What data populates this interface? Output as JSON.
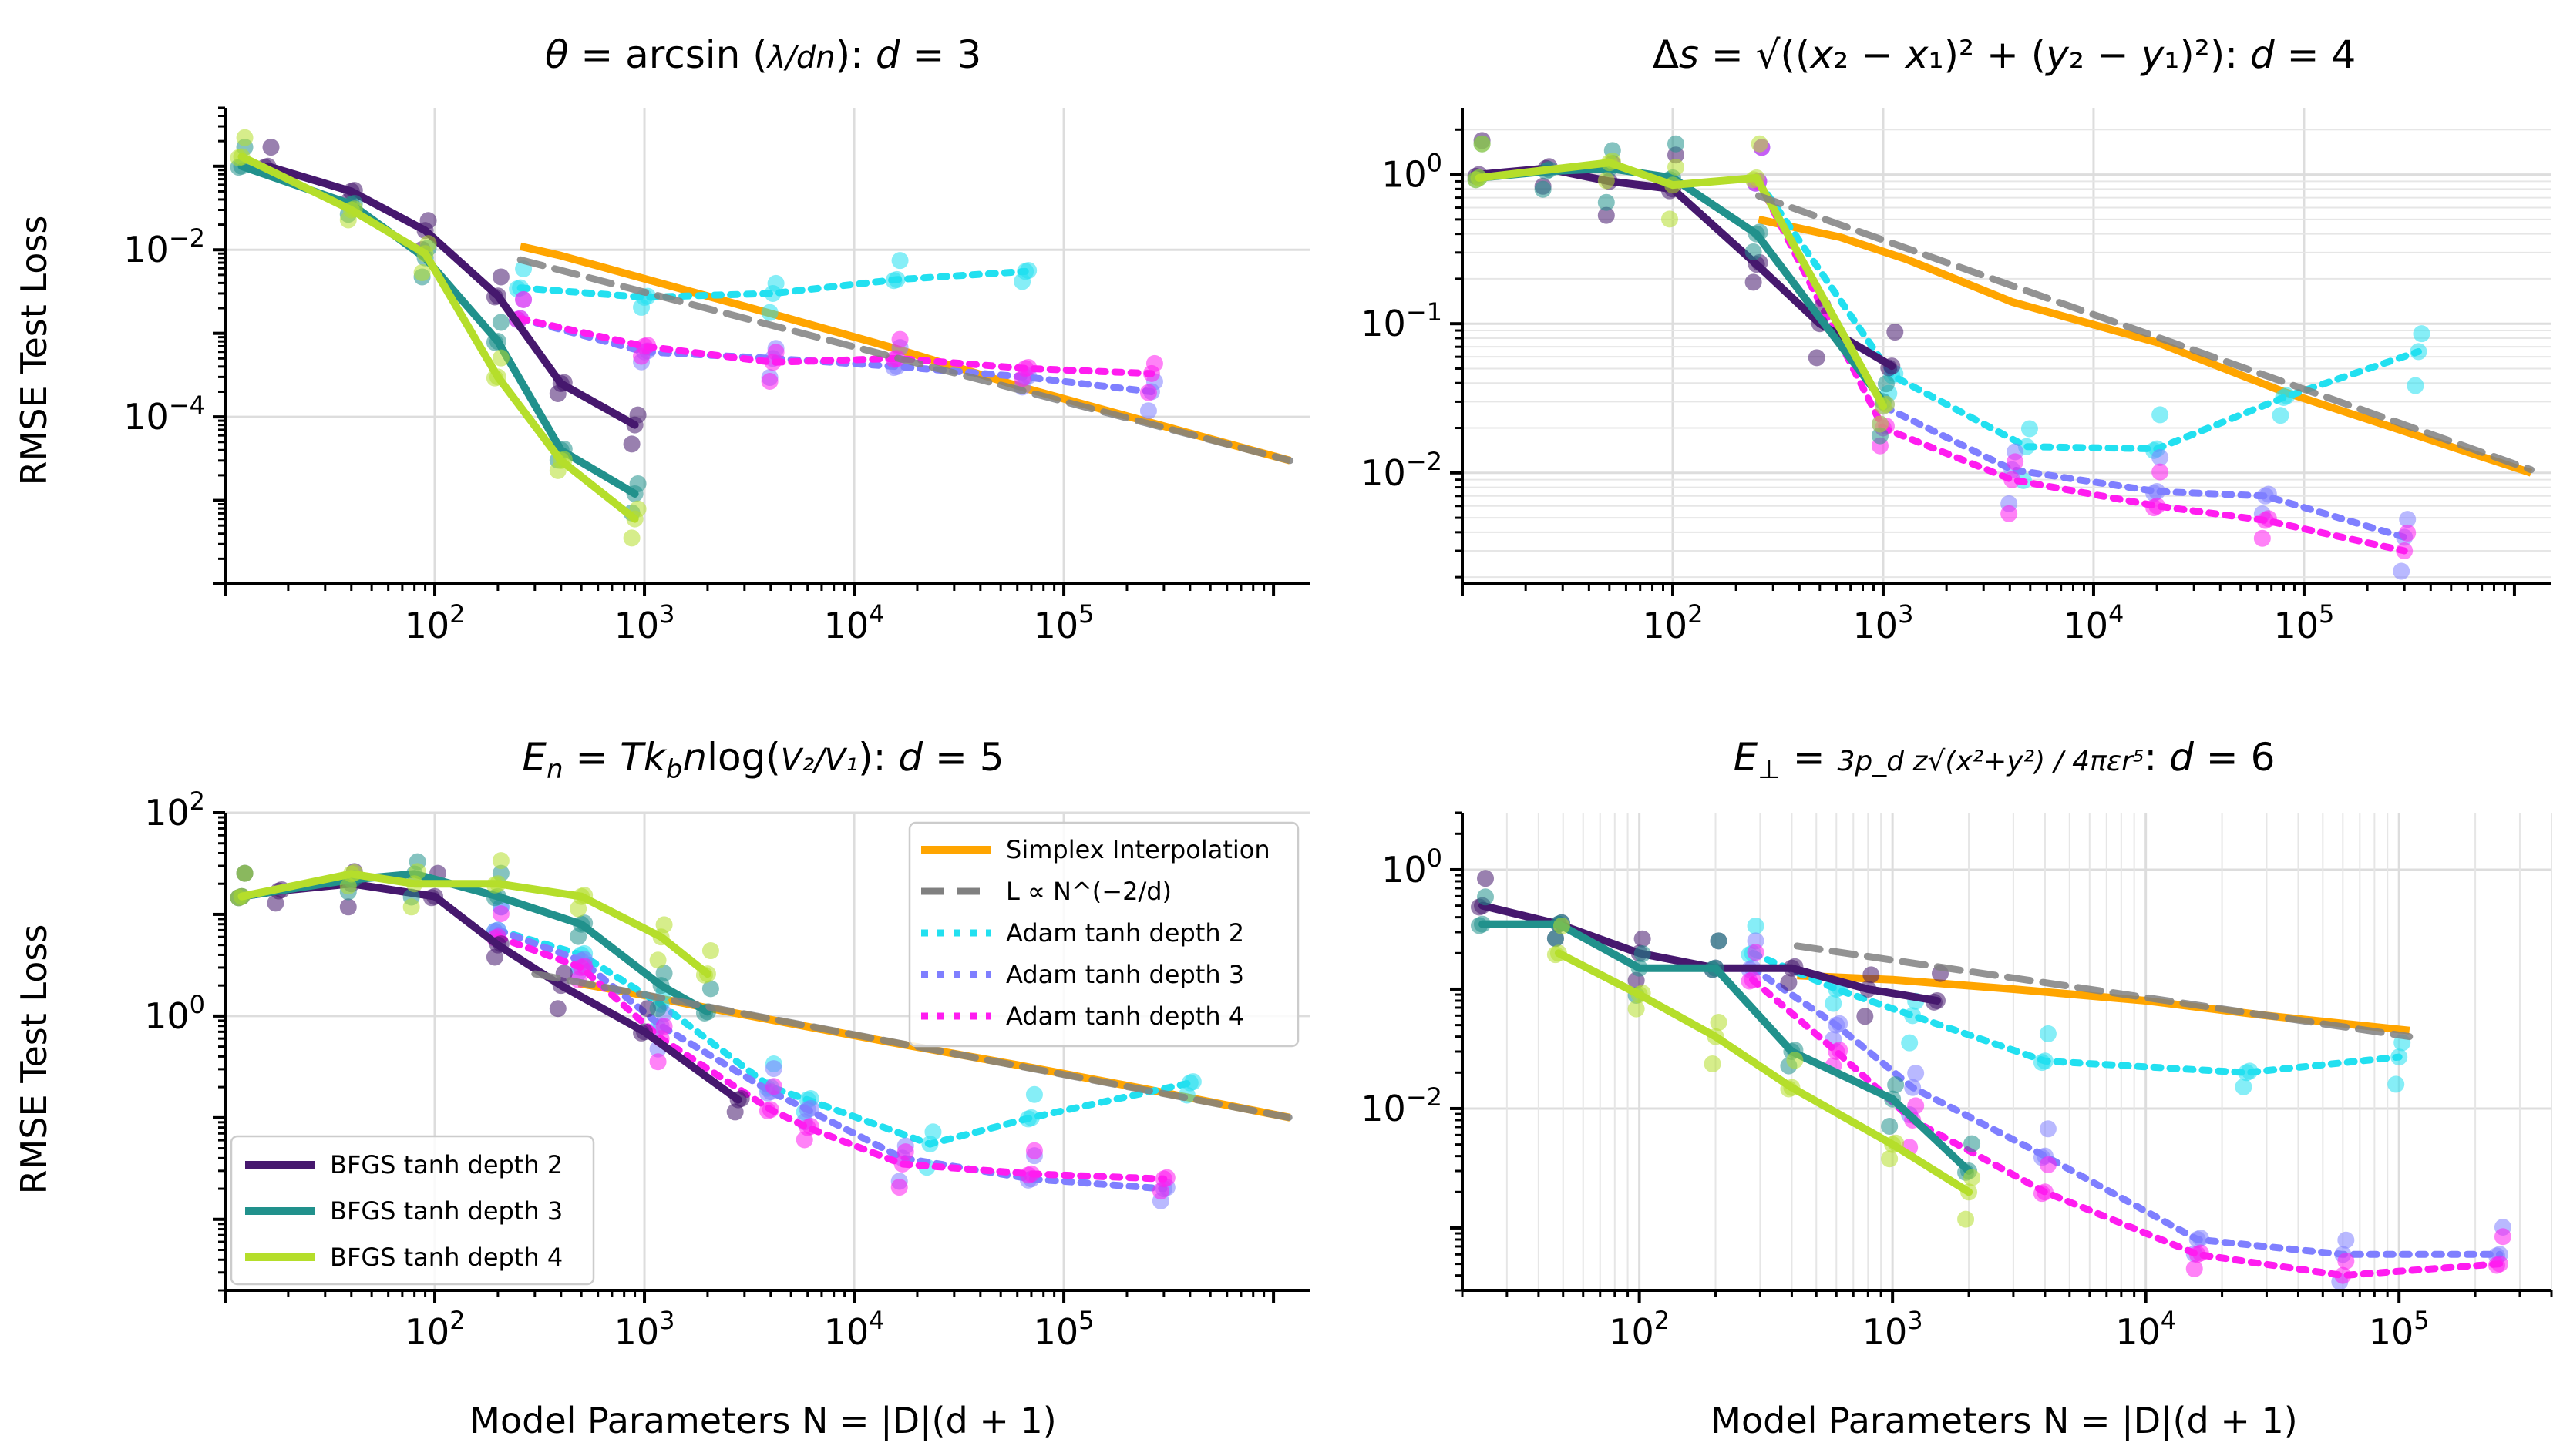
{
  "figure": {
    "ylabel": "RMSE Test Loss",
    "xlabel": "Model Parameters N = |D|(d + 1)"
  },
  "legend_top": {
    "entries": [
      {
        "label": "Simplex Interpolation",
        "series": "simplex"
      },
      {
        "label": "L ∝ N^(−2/d)",
        "series": "ref"
      },
      {
        "label": "Adam tanh depth 2",
        "series": "adam2"
      },
      {
        "label": "Adam tanh depth 3",
        "series": "adam3"
      },
      {
        "label": "Adam tanh depth 4",
        "series": "adam4"
      }
    ]
  },
  "legend_bottom": {
    "entries": [
      {
        "label": "BFGS tanh depth 2",
        "series": "bfgs2"
      },
      {
        "label": "BFGS tanh depth 3",
        "series": "bfgs3"
      },
      {
        "label": "BFGS tanh depth 4",
        "series": "bfgs4"
      }
    ]
  },
  "series_styles": {
    "simplex": {
      "color": "#ffa500",
      "dash": "none",
      "width": 10
    },
    "ref": {
      "color": "#808080",
      "dash": "30,16",
      "width": 9
    },
    "adam2": {
      "color": "#22e0f0",
      "dash": "9,12",
      "width": 9
    },
    "adam3": {
      "color": "#7f7fff",
      "dash": "9,12",
      "width": 9
    },
    "adam4": {
      "color": "#ff1cf0",
      "dash": "9,12",
      "width": 9
    },
    "bfgs2": {
      "color": "#46186e",
      "dash": "none",
      "width": 10
    },
    "bfgs3": {
      "color": "#21918c",
      "dash": "none",
      "width": 10
    },
    "bfgs4": {
      "color": "#b5de2b",
      "dash": "none",
      "width": 10
    }
  },
  "chart_data": [
    {
      "type": "line",
      "title": "θ = arcsin(λ/(dn)): d = 3",
      "xlabel": "",
      "ylabel": "RMSE Test Loss",
      "xscale": "log",
      "yscale": "log",
      "xlim": [
        10,
        1500000
      ],
      "ylim": [
        1e-06,
        0.5
      ],
      "xticks": [
        {
          "v": 100,
          "label": "10^2"
        },
        {
          "v": 1000,
          "label": "10^3"
        },
        {
          "v": 10000,
          "label": "10^4"
        },
        {
          "v": 100000,
          "label": "10^5"
        }
      ],
      "yticks": [
        {
          "v": 0.01,
          "label": "10^-2"
        },
        {
          "v": 0.0001,
          "label": "10^-4"
        }
      ],
      "grid": "major",
      "series": [
        {
          "name": "Simplex Interpolation",
          "key": "simplex",
          "x": [
            256,
            400,
            1000,
            4096,
            16000,
            65536,
            262144,
            1200000
          ],
          "y": [
            0.011,
            0.0085,
            0.0045,
            0.0017,
            0.00065,
            0.00022,
            8.5e-05,
            3e-05
          ]
        },
        {
          "name": "L ∝ N^(−2/d)",
          "key": "ref",
          "x": [
            256,
            1200000
          ],
          "y": [
            0.0076,
            3e-05
          ]
        },
        {
          "name": "Adam tanh depth 2",
          "key": "adam2",
          "x": [
            256,
            1000,
            4096,
            16000,
            65536
          ],
          "y": [
            0.0035,
            0.0027,
            0.003,
            0.0044,
            0.0055
          ]
        },
        {
          "name": "Adam tanh depth 3",
          "key": "adam3",
          "x": [
            256,
            1000,
            4096,
            16000,
            65536,
            262144
          ],
          "y": [
            0.0015,
            0.0006,
            0.0005,
            0.0004,
            0.0003,
            0.0002
          ]
        },
        {
          "name": "Adam tanh depth 4",
          "key": "adam4",
          "x": [
            256,
            1000,
            4096,
            16000,
            65536,
            262144
          ],
          "y": [
            0.0015,
            0.0007,
            0.00045,
            0.0005,
            0.00038,
            0.00033
          ]
        },
        {
          "name": "BFGS tanh depth 2",
          "key": "bfgs2",
          "x": [
            16,
            40,
            90,
            200,
            400,
            900
          ],
          "y": [
            0.1,
            0.05,
            0.017,
            0.0028,
            0.00025,
            8e-05
          ]
        },
        {
          "name": "BFGS tanh depth 3",
          "key": "bfgs3",
          "x": [
            12,
            40,
            90,
            200,
            400,
            900
          ],
          "y": [
            0.1,
            0.035,
            0.008,
            0.0008,
            4e-05,
            1.2e-05
          ]
        },
        {
          "name": "BFGS tanh depth 4",
          "key": "bfgs4",
          "x": [
            12,
            40,
            90,
            200,
            400,
            900
          ],
          "y": [
            0.13,
            0.03,
            0.009,
            0.0003,
            3e-05,
            6e-06
          ]
        }
      ]
    },
    {
      "type": "line",
      "title": "Δs = √((x2 − x1)² + (y2 − y1)²): d = 4",
      "xlabel": "",
      "ylabel": "",
      "xscale": "log",
      "yscale": "log",
      "xlim": [
        10,
        1500000
      ],
      "ylim": [
        0.0018,
        2.8
      ],
      "xticks": [
        {
          "v": 100,
          "label": "10^2"
        },
        {
          "v": 1000,
          "label": "10^3"
        },
        {
          "v": 10000,
          "label": "10^4"
        },
        {
          "v": 100000,
          "label": "10^5"
        }
      ],
      "yticks": [
        {
          "v": 1,
          "label": "10^0"
        },
        {
          "v": 0.1,
          "label": "10^-1"
        },
        {
          "v": 0.01,
          "label": "10^-2"
        }
      ],
      "grid": "both",
      "series": [
        {
          "name": "Simplex Interpolation",
          "key": "simplex",
          "x": [
            256,
            625,
            1296,
            4096,
            20000,
            80000,
            1200000
          ],
          "y": [
            0.5,
            0.38,
            0.27,
            0.14,
            0.075,
            0.035,
            0.01
          ]
        },
        {
          "name": "L ∝ N^(−2/d)",
          "key": "ref",
          "x": [
            256,
            1200000
          ],
          "y": [
            0.72,
            0.0105
          ]
        },
        {
          "name": "Adam tanh depth 2",
          "key": "adam2",
          "x": [
            256,
            1100,
            4800,
            20000,
            80000,
            350000
          ],
          "y": [
            0.9,
            0.045,
            0.015,
            0.0145,
            0.032,
            0.065
          ]
        },
        {
          "name": "Adam tanh depth 3",
          "key": "adam3",
          "x": [
            256,
            1000,
            4096,
            20000,
            65536,
            300000
          ],
          "y": [
            0.9,
            0.028,
            0.0105,
            0.0075,
            0.007,
            0.0037
          ]
        },
        {
          "name": "Adam tanh depth 4",
          "key": "adam4",
          "x": [
            256,
            1000,
            4096,
            20000,
            65536,
            300000
          ],
          "y": [
            0.9,
            0.02,
            0.009,
            0.006,
            0.0048,
            0.003
          ]
        },
        {
          "name": "BFGS tanh depth 2",
          "key": "bfgs2",
          "x": [
            12,
            25,
            50,
            100,
            250,
            500,
            1100
          ],
          "y": [
            1,
            1.1,
            0.9,
            0.8,
            0.25,
            0.1,
            0.052
          ]
        },
        {
          "name": "BFGS tanh depth 3",
          "key": "bfgs3",
          "x": [
            12,
            25,
            50,
            100,
            250,
            1000
          ],
          "y": [
            0.95,
            1.05,
            1.1,
            0.95,
            0.4,
            0.03
          ]
        },
        {
          "name": "BFGS tanh depth 4",
          "key": "bfgs4",
          "x": [
            12,
            50,
            100,
            250,
            1000
          ],
          "y": [
            0.95,
            1.2,
            0.85,
            0.95,
            0.028
          ]
        }
      ]
    },
    {
      "type": "line",
      "title": "En = T kb n log(V2/V1): d = 5",
      "xlabel": "Model Parameters N = |D|(d + 1)",
      "ylabel": "RMSE Test Loss",
      "xscale": "log",
      "yscale": "log",
      "xlim": [
        10,
        1500000
      ],
      "ylim": [
        0.002,
        100
      ],
      "xticks": [
        {
          "v": 100,
          "label": "10^2"
        },
        {
          "v": 1000,
          "label": "10^3"
        },
        {
          "v": 10000,
          "label": "10^4"
        },
        {
          "v": 100000,
          "label": "10^5"
        }
      ],
      "yticks": [
        {
          "v": 100,
          "label": "10^2"
        },
        {
          "v": 1,
          "label": "10^0"
        }
      ],
      "grid": "major",
      "series": [
        {
          "name": "Simplex Interpolation",
          "key": "simplex",
          "x": [
            486,
            1000,
            2000,
            4000,
            15000,
            60000,
            250000,
            1200000
          ],
          "y": [
            2.1,
            1.6,
            1.2,
            0.92,
            0.55,
            0.33,
            0.19,
            0.1
          ]
        },
        {
          "name": "L ∝ N^(−2/d)",
          "key": "ref",
          "x": [
            300,
            1200000
          ],
          "y": [
            2.6,
            0.1
          ]
        },
        {
          "name": "Adam tanh depth 2",
          "key": "adam2",
          "x": [
            200,
            500,
            1200,
            4000,
            6000,
            23000,
            70000,
            400000
          ],
          "y": [
            7,
            4,
            1.3,
            0.2,
            0.15,
            0.055,
            0.1,
            0.22
          ]
        },
        {
          "name": "Adam tanh depth 3",
          "key": "adam3",
          "x": [
            200,
            500,
            1200,
            4000,
            6000,
            17000,
            70000,
            300000
          ],
          "y": [
            7,
            3.5,
            0.8,
            0.18,
            0.12,
            0.04,
            0.025,
            0.02
          ]
        },
        {
          "name": "Adam tanh depth 4",
          "key": "adam4",
          "x": [
            200,
            500,
            1200,
            4000,
            6000,
            17000,
            70000,
            300000
          ],
          "y": [
            6,
            3,
            0.6,
            0.12,
            0.08,
            0.035,
            0.028,
            0.025
          ]
        },
        {
          "name": "BFGS tanh depth 2",
          "key": "bfgs2",
          "x": [
            12,
            18,
            40,
            100,
            200,
            400,
            1000,
            2800
          ],
          "y": [
            15,
            17,
            20,
            15,
            5,
            2,
            0.7,
            0.15
          ]
        },
        {
          "name": "BFGS tanh depth 3",
          "key": "bfgs3",
          "x": [
            12,
            40,
            80,
            200,
            500,
            1200,
            2000
          ],
          "y": [
            15,
            22,
            25,
            15,
            8,
            2,
            1.1
          ]
        },
        {
          "name": "BFGS tanh depth 4",
          "key": "bfgs4",
          "x": [
            12,
            40,
            80,
            200,
            500,
            1200,
            2000
          ],
          "y": [
            15,
            25,
            20,
            20,
            15,
            6,
            2.6
          ]
        }
      ]
    },
    {
      "type": "line",
      "title": "E⊥ = 3 pd z √(x² + y²) / (4 π ε r⁵): d = 6",
      "xlabel": "Model Parameters N = |D|(d + 1)",
      "ylabel": "",
      "xscale": "log",
      "yscale": "log",
      "xlim": [
        20,
        400000
      ],
      "ylim": [
        0.0003,
        3
      ],
      "xticks": [
        {
          "v": 100,
          "label": "10^2"
        },
        {
          "v": 1000,
          "label": "10^3"
        },
        {
          "v": 10000,
          "label": "10^4"
        },
        {
          "v": 100000,
          "label": "10^5"
        }
      ],
      "yticks": [
        {
          "v": 1,
          "label": "10^0"
        },
        {
          "v": 0.01,
          "label": "10^-2"
        }
      ],
      "grid": "both-x",
      "series": [
        {
          "name": "Simplex Interpolation",
          "key": "simplex",
          "x": [
            420,
            1000,
            3000,
            10000,
            30000,
            110000
          ],
          "y": [
            0.13,
            0.12,
            0.1,
            0.08,
            0.06,
            0.045
          ]
        },
        {
          "name": "L ∝ N^(−2/d)",
          "key": "ref",
          "x": [
            420,
            110000
          ],
          "y": [
            0.23,
            0.04
          ]
        },
        {
          "name": "Adam tanh depth 2",
          "key": "adam2",
          "x": [
            280,
            600,
            1200,
            4000,
            25000,
            100000
          ],
          "y": [
            0.2,
            0.1,
            0.06,
            0.025,
            0.02,
            0.027
          ]
        },
        {
          "name": "Adam tanh depth 3",
          "key": "adam3",
          "x": [
            280,
            600,
            1200,
            4000,
            16000,
            60000,
            250000
          ],
          "y": [
            0.15,
            0.05,
            0.015,
            0.004,
            0.0008,
            0.0006,
            0.0006
          ]
        },
        {
          "name": "Adam tanh depth 4",
          "key": "adam4",
          "x": [
            280,
            600,
            1200,
            4000,
            16000,
            60000,
            250000
          ],
          "y": [
            0.12,
            0.03,
            0.008,
            0.002,
            0.0006,
            0.0004,
            0.0005
          ]
        },
        {
          "name": "BFGS tanh depth 2",
          "key": "bfgs2",
          "x": [
            24,
            48,
            100,
            200,
            400,
            800,
            1500
          ],
          "y": [
            0.5,
            0.35,
            0.2,
            0.15,
            0.15,
            0.1,
            0.08
          ]
        },
        {
          "name": "BFGS tanh depth 3",
          "key": "bfgs3",
          "x": [
            24,
            48,
            100,
            200,
            400,
            1000,
            2000
          ],
          "y": [
            0.35,
            0.35,
            0.15,
            0.15,
            0.03,
            0.012,
            0.003
          ]
        },
        {
          "name": "BFGS tanh depth 4",
          "key": "bfgs4",
          "x": [
            48,
            100,
            200,
            400,
            1000,
            2000
          ],
          "y": [
            0.2,
            0.09,
            0.04,
            0.015,
            0.005,
            0.002
          ]
        }
      ]
    }
  ]
}
